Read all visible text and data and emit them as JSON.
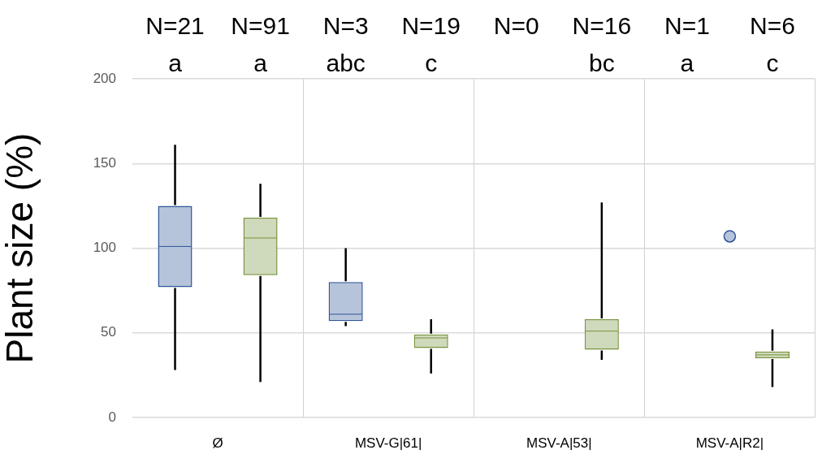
{
  "chart_data": {
    "type": "box",
    "ylabel": "Plant size (%)",
    "categories": [
      "Ø",
      "MSV-G|61|",
      "MSV-A|53|",
      "MSV-A|R2|"
    ],
    "series": [
      {
        "color": "#2f5597",
        "boxes": [
          {
            "low": 28,
            "q1": 77,
            "median": 101,
            "q3": 125,
            "high": 161
          },
          {
            "low": 54,
            "q1": 57,
            "median": 61,
            "q3": 80,
            "high": 100
          },
          null,
          null
        ]
      },
      {
        "color": "#77933c",
        "boxes": [
          {
            "low": 21,
            "q1": 84,
            "median": 106,
            "q3": 118,
            "high": 138
          },
          {
            "low": 26,
            "q1": 41,
            "median": 47,
            "q3": 49,
            "high": 58
          },
          {
            "low": 34,
            "q1": 40,
            "median": 51,
            "q3": 58,
            "high": 127
          },
          {
            "low": 18,
            "q1": 35,
            "median": 37,
            "q3": 39,
            "high": 52
          }
        ]
      },
      {
        "type": "scatter",
        "color": "#2f5597",
        "marker": "circle",
        "x": [
          "MSV-A|R2|"
        ],
        "values": [
          107
        ]
      }
    ],
    "ylim": [
      0,
      200
    ],
    "yticks": [
      0,
      50,
      100,
      150,
      200
    ],
    "grid": true,
    "legend": false,
    "annotations": [
      "N=21\na",
      "N=91\na",
      "N=3\nabc",
      "N=19\nc",
      "N=0",
      "N=16\nbc",
      "N=1\na",
      "N=6\nc"
    ]
  }
}
